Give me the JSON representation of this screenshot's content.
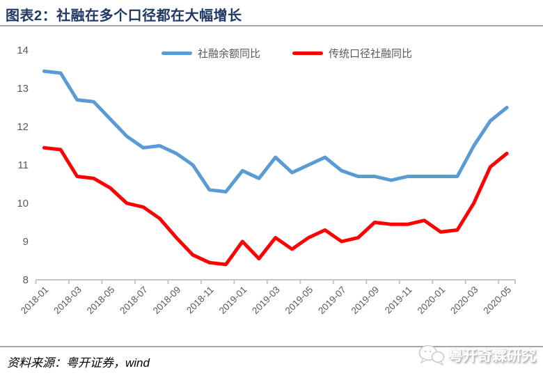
{
  "header": {
    "title": "图表2：社融在多个口径都在大幅增长"
  },
  "legend": [
    {
      "label": "社融余额同比",
      "color": "#5B9BD5"
    },
    {
      "label": "传统口径社融同比",
      "color": "#FF0000"
    }
  ],
  "footer": {
    "source": "资料来源：粤开证券，wind",
    "watermark": "粤开奇霖研究"
  },
  "icons": {
    "watermark_icon": "wechat-bubbles-icon"
  },
  "colors": {
    "title": "#1f3864",
    "axis_line": "#c6c6c6",
    "tick_label": "#595959",
    "rule": "#a6a6a6"
  },
  "chart_data": {
    "type": "line",
    "title": "图表2：社融在多个口径都在大幅增长",
    "xlabel": "",
    "ylabel": "",
    "ylim": [
      8,
      14
    ],
    "y_ticks": [
      8,
      9,
      10,
      11,
      12,
      13,
      14
    ],
    "grid": false,
    "legend_position": "top",
    "categories": [
      "2018-01",
      "2018-02",
      "2018-03",
      "2018-04",
      "2018-05",
      "2018-06",
      "2018-07",
      "2018-08",
      "2018-09",
      "2018-10",
      "2018-11",
      "2018-12",
      "2019-01",
      "2019-02",
      "2019-03",
      "2019-04",
      "2019-05",
      "2019-06",
      "2019-07",
      "2019-08",
      "2019-09",
      "2019-10",
      "2019-11",
      "2019-12",
      "2020-01",
      "2020-02",
      "2020-03",
      "2020-04",
      "2020-05"
    ],
    "x_ticklabels": [
      "2018-01",
      "2018-03",
      "2018-05",
      "2018-07",
      "2018-09",
      "2018-11",
      "2019-01",
      "2019-03",
      "2019-05",
      "2019-07",
      "2019-09",
      "2019-11",
      "2020-01",
      "2020-03",
      "2020-05"
    ],
    "series": [
      {
        "name": "社融余额同比",
        "color": "#5B9BD5",
        "values": [
          13.45,
          13.4,
          12.7,
          12.65,
          12.2,
          11.75,
          11.45,
          11.5,
          11.3,
          11.0,
          10.35,
          10.3,
          10.85,
          10.65,
          11.2,
          10.8,
          11.0,
          11.2,
          10.85,
          10.7,
          10.7,
          10.6,
          10.7,
          10.7,
          10.7,
          10.7,
          11.5,
          12.15,
          12.5
        ]
      },
      {
        "name": "传统口径社融同比",
        "color": "#FF0000",
        "values": [
          11.45,
          11.4,
          10.7,
          10.65,
          10.4,
          10.0,
          9.9,
          9.6,
          9.1,
          8.65,
          8.45,
          8.4,
          9.0,
          8.55,
          9.1,
          8.8,
          9.1,
          9.3,
          9.0,
          9.1,
          9.5,
          9.45,
          9.45,
          9.55,
          9.25,
          9.3,
          10.0,
          10.95,
          11.3
        ]
      }
    ]
  }
}
